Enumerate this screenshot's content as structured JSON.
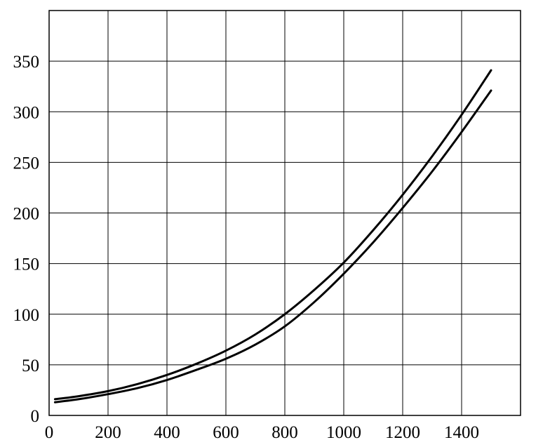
{
  "chart_data": {
    "type": "line",
    "title": "",
    "xlabel": "",
    "ylabel": "",
    "xlim": [
      0,
      1600
    ],
    "ylim": [
      0,
      400
    ],
    "x_ticks": [
      0,
      200,
      400,
      600,
      800,
      1000,
      1200,
      1400
    ],
    "y_ticks": [
      0,
      50,
      100,
      150,
      200,
      250,
      300,
      350
    ],
    "x_tick_labels": [
      "0",
      "200",
      "400",
      "600",
      "800",
      "1000",
      "1200",
      "1400"
    ],
    "y_tick_labels": [
      "0",
      "50",
      "100",
      "150",
      "200",
      "250",
      "300",
      "350"
    ],
    "grid": true,
    "legend": "none",
    "line_color": "#000000",
    "series": [
      {
        "x": [
          20,
          100,
          200,
          300,
          400,
          500,
          600,
          700,
          800,
          900,
          1000,
          1100,
          1200,
          1300,
          1400,
          1500
        ],
        "values": [
          16,
          19,
          24,
          31,
          40,
          51,
          64,
          80,
          100,
          124,
          151,
          183,
          218,
          256,
          297,
          341
        ]
      },
      {
        "x": [
          20,
          100,
          200,
          300,
          400,
          500,
          600,
          700,
          800,
          900,
          1000,
          1100,
          1200,
          1300,
          1400,
          1500
        ],
        "values": [
          13,
          16,
          21,
          27,
          35,
          45,
          56,
          70,
          88,
          112,
          140,
          171,
          205,
          241,
          280,
          321
        ]
      }
    ]
  }
}
